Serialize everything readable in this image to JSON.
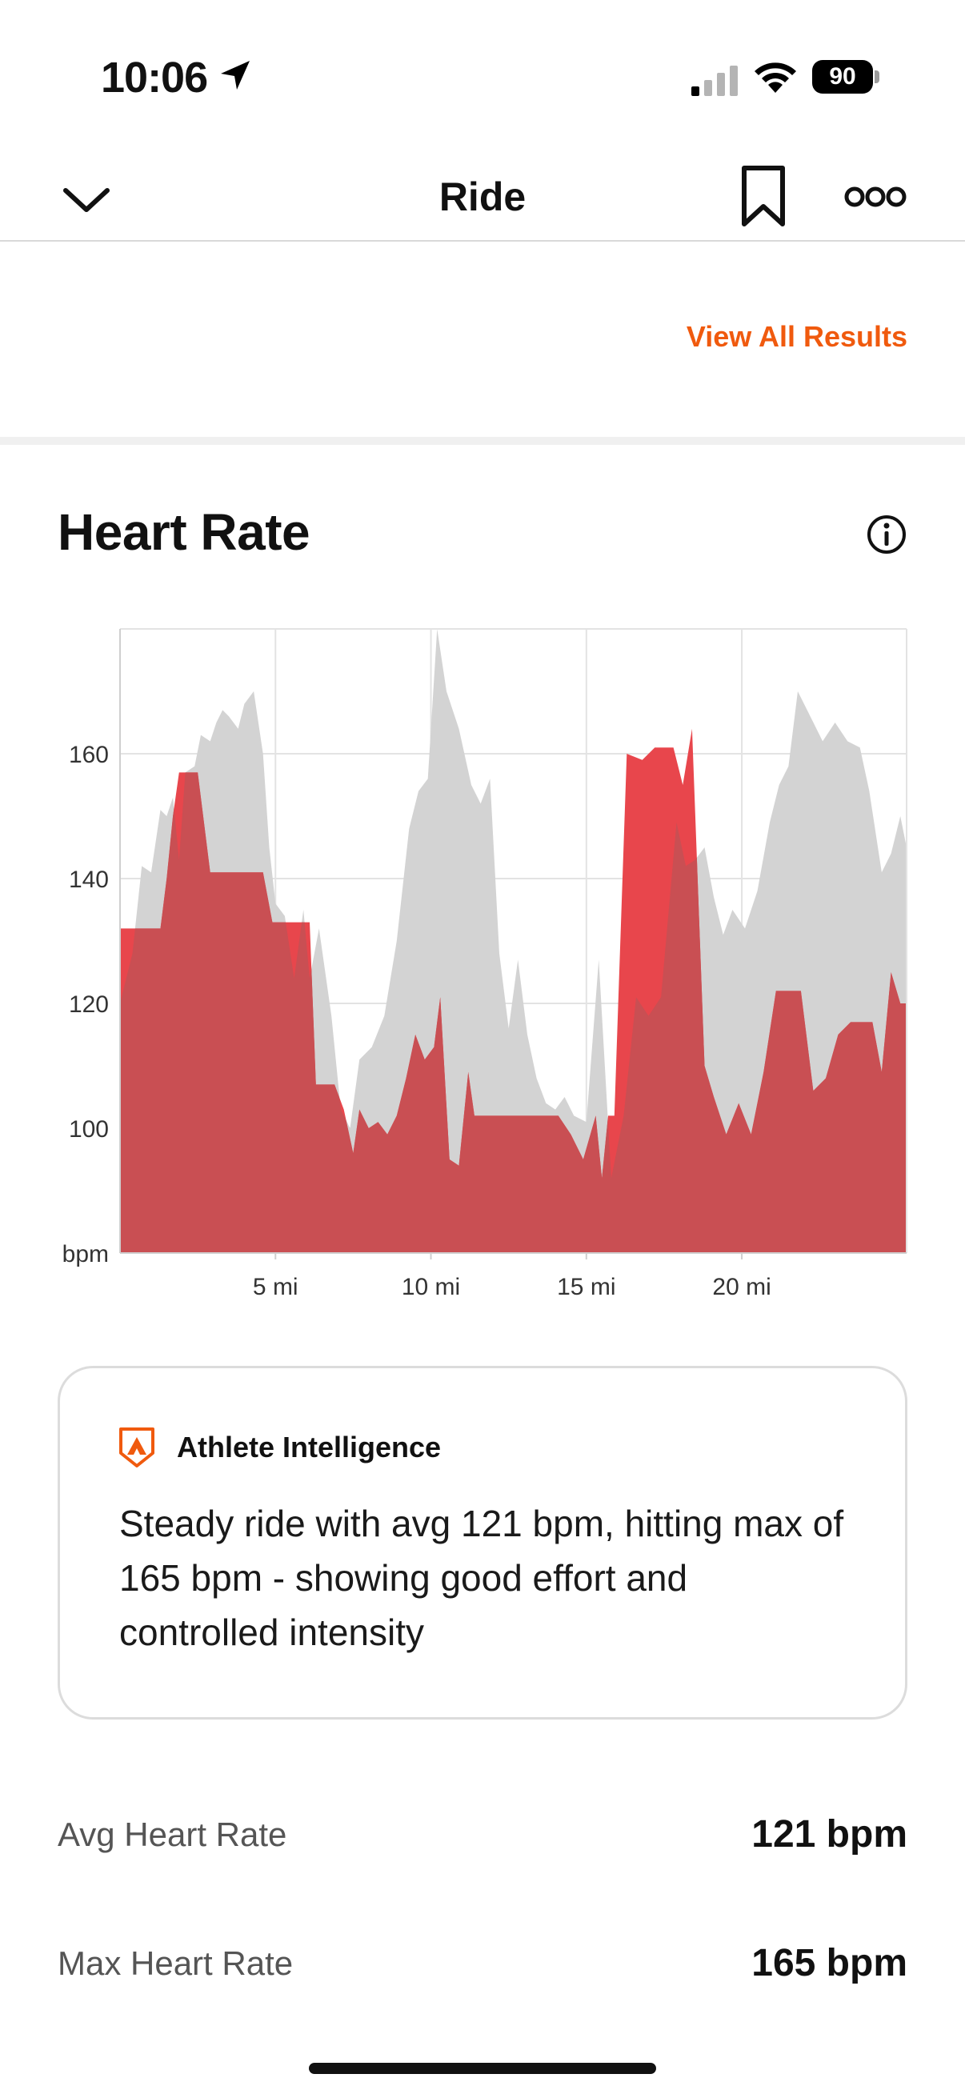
{
  "status_bar": {
    "time": "10:06",
    "battery": "90",
    "icons": [
      "location-arrow-icon",
      "cellular-signal-icon",
      "wifi-icon",
      "battery-icon"
    ]
  },
  "nav": {
    "title": "Ride",
    "icons": [
      "chevron-down-icon",
      "bookmark-icon",
      "more-icon"
    ]
  },
  "results": {
    "view_all_label": "View All Results"
  },
  "heart_rate": {
    "title": "Heart Rate",
    "info_icon": "info-icon"
  },
  "chart_data": {
    "type": "area",
    "xlabel": "",
    "ylabel": "bpm",
    "x_unit": "mi",
    "xlim": [
      0,
      25.3
    ],
    "ylim": [
      80,
      180
    ],
    "y_ticks": [
      100,
      120,
      140,
      160
    ],
    "y_tick_labels": [
      "bpm",
      "100",
      "120",
      "140",
      "160"
    ],
    "x_ticks": [
      5,
      10,
      15,
      20
    ],
    "x_tick_labels": [
      "5 mi",
      "10 mi",
      "15 mi",
      "20 mi"
    ],
    "grid": true,
    "colors": {
      "series_a": "#e8464c",
      "series_b": "#d3d3d3",
      "overlap": "#c94f53"
    },
    "series": [
      {
        "x": [
          0,
          0.4,
          0.7,
          1.0,
          1.3,
          1.5,
          1.7,
          1.9,
          2.1,
          2.4,
          2.6,
          2.9,
          3.1,
          3.3,
          3.5,
          3.8,
          4.0,
          4.3,
          4.6,
          4.8,
          5.0,
          5.3,
          5.6,
          5.9,
          6.1,
          6.4,
          6.8,
          7.1,
          7.4,
          7.7,
          8.1,
          8.5,
          8.9,
          9.3,
          9.6,
          9.9,
          10.2,
          10.5,
          10.9,
          11.3,
          11.6,
          11.9,
          12.2,
          12.5,
          12.8,
          13.1,
          13.4,
          13.7,
          14.0,
          14.3,
          14.6,
          15.0,
          15.4,
          15.8,
          16.2,
          16.6,
          17.0,
          17.4,
          17.9,
          18.2,
          18.5,
          18.8,
          19.1,
          19.4,
          19.7,
          20.1,
          20.5,
          20.9,
          21.2,
          21.5,
          21.8,
          22.2,
          22.6,
          23.0,
          23.4,
          23.8,
          24.1,
          24.5,
          24.8,
          25.1,
          25.3
        ],
        "values": [
          120,
          128,
          142,
          141,
          151,
          150,
          153,
          143,
          157,
          158,
          163,
          162,
          165,
          167,
          166,
          164,
          168,
          170,
          160,
          145,
          136,
          134,
          124,
          135,
          124,
          132,
          118,
          103,
          100,
          111,
          113,
          118,
          130,
          148,
          154,
          156,
          180,
          170,
          164,
          155,
          152,
          156,
          128,
          116,
          127,
          115,
          108,
          104,
          103,
          105,
          102,
          101,
          127,
          92,
          102,
          121,
          118,
          121,
          149,
          142,
          143,
          145,
          137,
          131,
          135,
          132,
          138,
          149,
          155,
          158,
          170,
          166,
          162,
          165,
          162,
          161,
          154,
          141,
          144,
          150,
          145
        ],
        "name": "",
        "y_note": "gray series; visual estimate"
      },
      {
        "x": [
          0,
          0.3,
          0.6,
          1.0,
          1.3,
          1.5,
          1.7,
          1.9,
          2.1,
          2.5,
          2.9,
          3.1,
          3.3,
          4.3,
          4.6,
          4.9,
          5.3,
          5.7,
          6.1,
          6.3,
          6.6,
          6.9,
          7.2,
          7.5,
          7.7,
          8.0,
          8.3,
          8.6,
          8.9,
          9.2,
          9.5,
          9.8,
          10.1,
          10.3,
          10.6,
          10.9,
          11.2,
          11.4,
          11.7,
          12.1,
          12.6,
          13.1,
          13.6,
          14.1,
          14.5,
          14.9,
          15.3,
          15.5,
          15.7,
          15.9,
          16.3,
          16.8,
          17.2,
          17.6,
          17.8,
          18.1,
          18.4,
          18.8,
          19.1,
          19.5,
          19.9,
          20.3,
          20.7,
          21.1,
          21.5,
          21.9,
          22.3,
          22.7,
          23.1,
          23.5,
          23.9,
          24.2,
          24.5,
          24.8,
          25.1,
          25.3
        ],
        "values": [
          132,
          132,
          132,
          132,
          132,
          140,
          150,
          157,
          157,
          157,
          141,
          141,
          141,
          141,
          141,
          133,
          133,
          133,
          133,
          107,
          107,
          107,
          103,
          96,
          103,
          100,
          101,
          99,
          102,
          108,
          115,
          111,
          113,
          121,
          95,
          94,
          109,
          102,
          102,
          102,
          102,
          102,
          102,
          102,
          99,
          95,
          102,
          92,
          102,
          102,
          160,
          159,
          161,
          161,
          161,
          155,
          164,
          110,
          105,
          99,
          104,
          99,
          109,
          122,
          122,
          122,
          106,
          108,
          115,
          117,
          117,
          117,
          109,
          125,
          120,
          120
        ],
        "name": "",
        "y_note": "red series; visual estimate"
      }
    ]
  },
  "ai_card": {
    "logo_icon": "athlete-intelligence-logo-icon",
    "label": "Athlete Intelligence",
    "text": "Steady ride with avg 121 bpm, hitting max of 165 bpm - showing good effort and controlled intensity"
  },
  "stats": {
    "avg_label": "Avg Heart Rate",
    "avg_value": "121 bpm",
    "max_label": "Max Heart Rate",
    "max_value": "165 bpm"
  }
}
